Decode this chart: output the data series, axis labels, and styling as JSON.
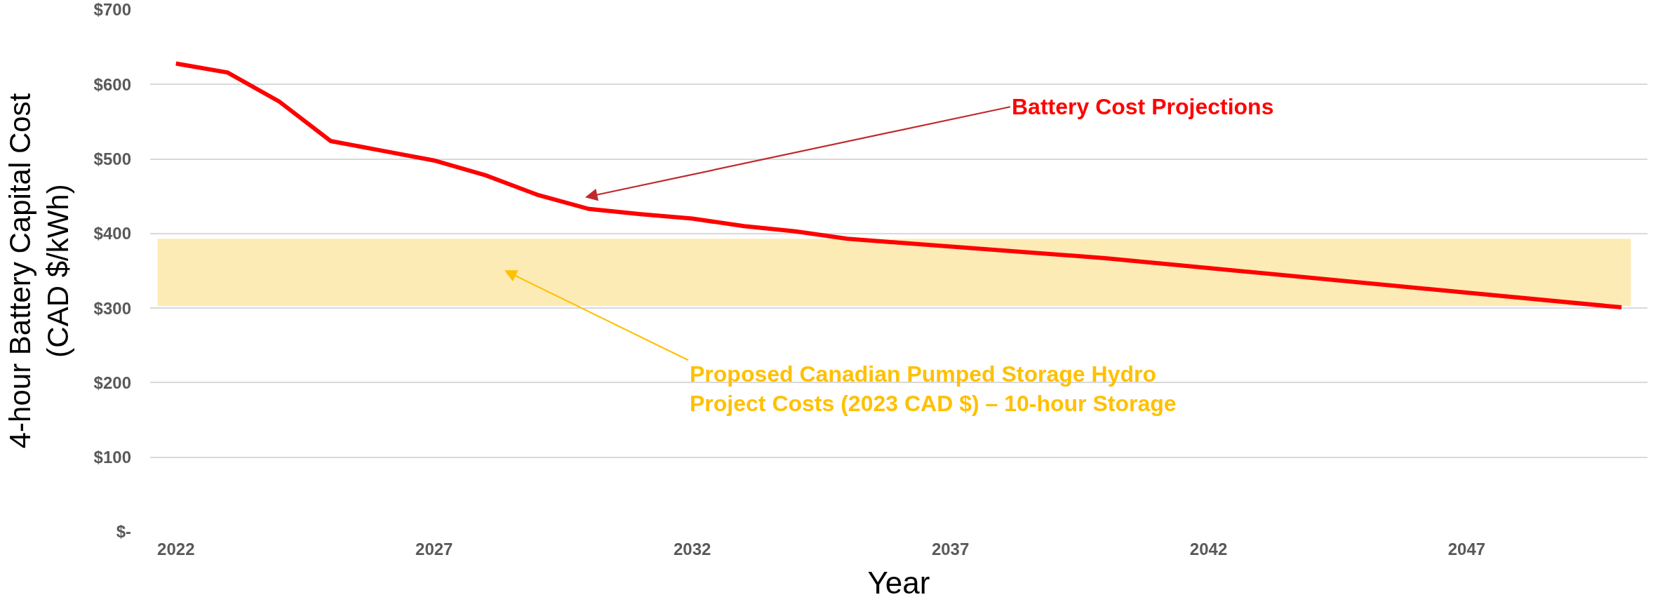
{
  "chart_data": {
    "type": "line",
    "xlabel": "Year",
    "ylabel": "4-hour Battery Capital Cost\n(CAD $/kWh)",
    "x": [
      2022,
      2023,
      2024,
      2025,
      2026,
      2027,
      2028,
      2029,
      2030,
      2031,
      2032,
      2033,
      2034,
      2035,
      2040,
      2050
    ],
    "series": [
      {
        "color": "#ff0000",
        "values": [
          628,
          616,
          577,
          524,
          511,
          498,
          478,
          452,
          433,
          426,
          420,
          410,
          403,
          393,
          367,
          301
        ]
      }
    ],
    "xlim": [
      2021.5,
      2050.5
    ],
    "xticks": [
      2022,
      2027,
      2032,
      2037,
      2042,
      2047
    ],
    "ylim": [
      0,
      700
    ],
    "yticks": [
      {
        "value": 0,
        "label": "$-"
      },
      {
        "value": 100,
        "label": "$100"
      },
      {
        "value": 200,
        "label": "$200"
      },
      {
        "value": 300,
        "label": "$300"
      },
      {
        "value": 400,
        "label": "$400"
      },
      {
        "value": 500,
        "label": "$500"
      },
      {
        "value": 600,
        "label": "$600"
      },
      {
        "value": 700,
        "label": "$700"
      }
    ],
    "bands": [
      {
        "axis": "y",
        "from": 303,
        "to": 393,
        "color": "#fdebb5"
      }
    ],
    "annotations": [
      "Battery Cost Projections",
      "Proposed Canadian Pumped Storage Hydro\nProject Costs (2023 CAD $) – 10-hour Storage"
    ],
    "grid": "y",
    "marker": "none",
    "line_style": "solid"
  }
}
